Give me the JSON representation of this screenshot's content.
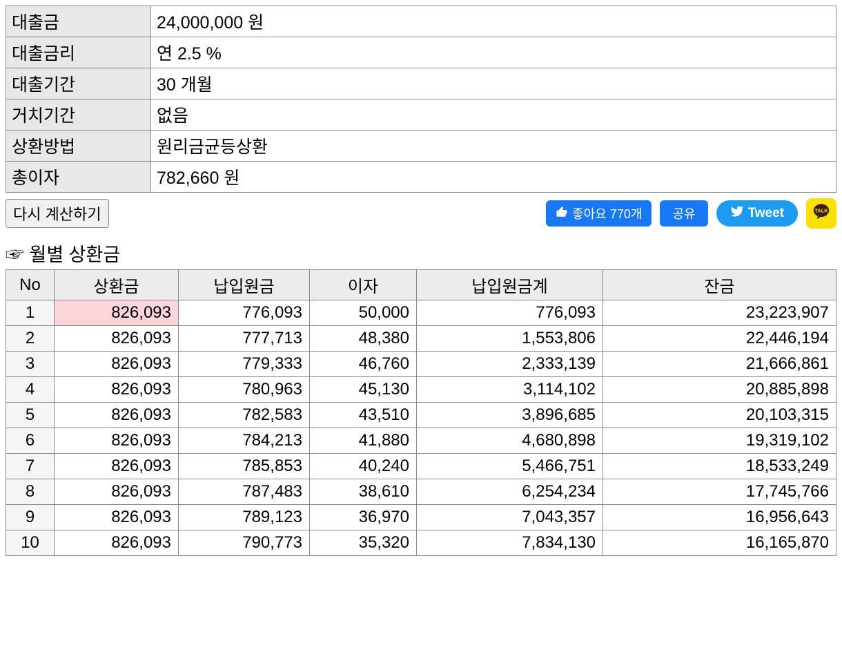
{
  "summary": {
    "loan_amount_label": "대출금",
    "loan_amount_value": "24,000,000 원",
    "rate_label": "대출금리",
    "rate_value": "연 2.5 %",
    "period_label": "대출기간",
    "period_value": "30 개월",
    "grace_label": "거치기간",
    "grace_value": "없음",
    "method_label": "상환방법",
    "method_value": "원리금균등상환",
    "total_interest_label": "총이자",
    "total_interest_value": "782,660 원"
  },
  "buttons": {
    "recalculate": "다시 계산하기",
    "fb_like": "좋아요 770개",
    "fb_share": "공유",
    "tweet": "Tweet"
  },
  "section_title": "☞ 월별 상환금",
  "schedule": {
    "headers": {
      "no": "No",
      "payment": "상환금",
      "principal": "납입원금",
      "interest": "이자",
      "cum_principal": "납입원금계",
      "balance": "잔금"
    },
    "rows": [
      {
        "no": "1",
        "payment": "826,093",
        "principal": "776,093",
        "interest": "50,000",
        "cum": "776,093",
        "balance": "23,223,907",
        "highlight": true
      },
      {
        "no": "2",
        "payment": "826,093",
        "principal": "777,713",
        "interest": "48,380",
        "cum": "1,553,806",
        "balance": "22,446,194"
      },
      {
        "no": "3",
        "payment": "826,093",
        "principal": "779,333",
        "interest": "46,760",
        "cum": "2,333,139",
        "balance": "21,666,861"
      },
      {
        "no": "4",
        "payment": "826,093",
        "principal": "780,963",
        "interest": "45,130",
        "cum": "3,114,102",
        "balance": "20,885,898"
      },
      {
        "no": "5",
        "payment": "826,093",
        "principal": "782,583",
        "interest": "43,510",
        "cum": "3,896,685",
        "balance": "20,103,315"
      },
      {
        "no": "6",
        "payment": "826,093",
        "principal": "784,213",
        "interest": "41,880",
        "cum": "4,680,898",
        "balance": "19,319,102"
      },
      {
        "no": "7",
        "payment": "826,093",
        "principal": "785,853",
        "interest": "40,240",
        "cum": "5,466,751",
        "balance": "18,533,249"
      },
      {
        "no": "8",
        "payment": "826,093",
        "principal": "787,483",
        "interest": "38,610",
        "cum": "6,254,234",
        "balance": "17,745,766"
      },
      {
        "no": "9",
        "payment": "826,093",
        "principal": "789,123",
        "interest": "36,970",
        "cum": "7,043,357",
        "balance": "16,956,643"
      },
      {
        "no": "10",
        "payment": "826,093",
        "principal": "790,773",
        "interest": "35,320",
        "cum": "7,834,130",
        "balance": "16,165,870"
      }
    ]
  },
  "colors": {
    "border": "#888888",
    "header_bg": "#e8e8e8",
    "highlight_bg": "#fbd5d9",
    "fb_blue": "#1877f2",
    "tw_blue": "#1d9bf0",
    "kakao_yellow": "#fae100"
  }
}
